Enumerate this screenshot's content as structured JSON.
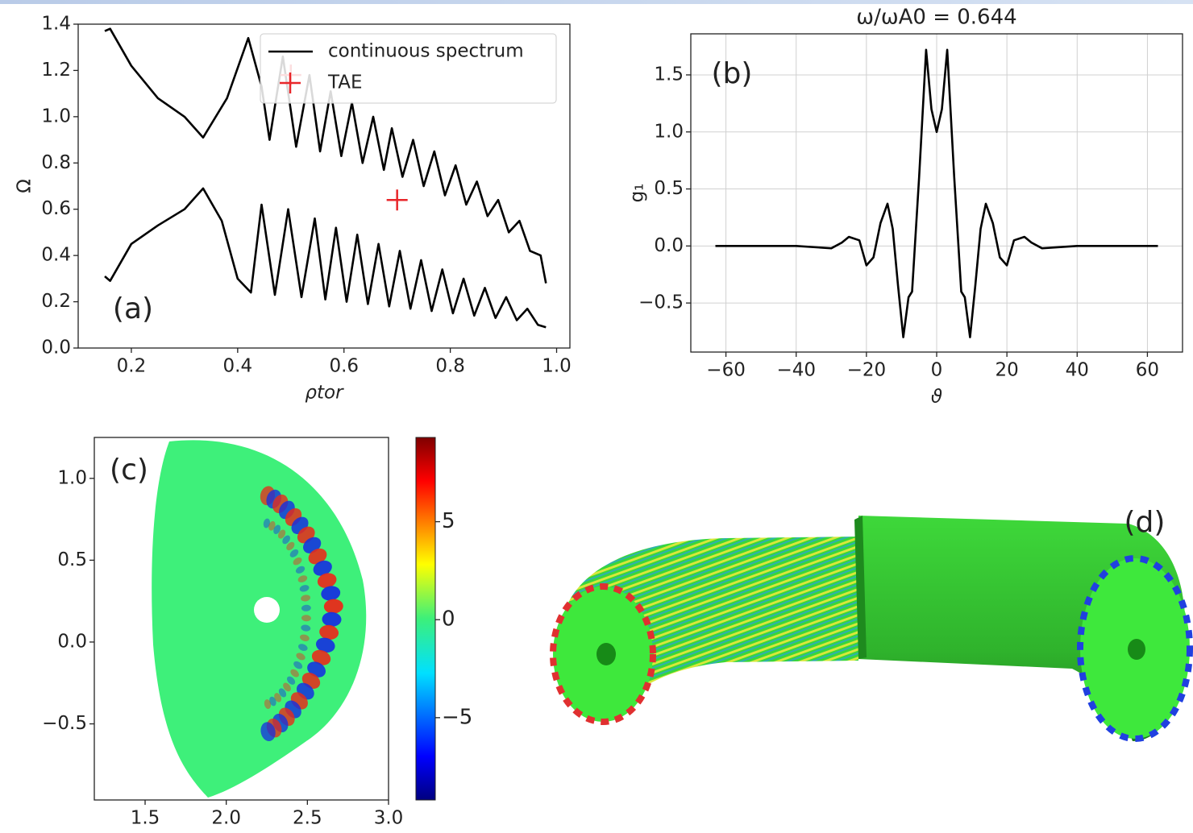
{
  "chart_data": [
    {
      "type": "line",
      "panel_label": "(a)",
      "xlabel": "ρtor",
      "ylabel": "Ω",
      "xlim": [
        0.1,
        1.025
      ],
      "ylim": [
        0,
        1.4
      ],
      "xticks": [
        0.2,
        0.4,
        0.6,
        0.8,
        {
          "value": 1,
          "label": "1.0"
        }
      ],
      "yticks": [
        {
          "value": 0,
          "label": "0.0"
        },
        0.2,
        0.4,
        0.6,
        0.8,
        {
          "value": 1,
          "label": "1.0"
        },
        1.2,
        1.4
      ],
      "grid": false,
      "legend": "upper right",
      "series": [
        {
          "name": "continuous spectrum",
          "color": "#000000",
          "x": [
            0.15,
            0.16,
            0.2,
            0.25,
            0.3,
            0.335,
            0.38,
            0.42,
            0.445,
            0.46,
            0.485,
            0.51,
            0.535,
            0.555,
            0.575,
            0.595,
            0.615,
            0.635,
            0.655,
            0.675,
            0.69,
            0.71,
            0.73,
            0.75,
            0.77,
            0.79,
            0.81,
            0.83,
            0.85,
            0.87,
            0.89,
            0.91,
            0.93,
            0.95,
            0.97,
            0.98,
            null,
            0.15,
            0.16,
            0.2,
            0.25,
            0.3,
            0.335,
            0.37,
            0.4,
            0.425,
            0.445,
            0.47,
            0.495,
            0.52,
            0.545,
            0.565,
            0.585,
            0.605,
            0.625,
            0.645,
            0.665,
            0.685,
            0.705,
            0.725,
            0.745,
            0.765,
            0.785,
            0.805,
            0.825,
            0.845,
            0.865,
            0.885,
            0.905,
            0.925,
            0.945,
            0.965,
            0.98
          ],
          "values": [
            1.37,
            1.38,
            1.22,
            1.08,
            1.0,
            0.91,
            1.08,
            1.34,
            1.13,
            0.9,
            1.26,
            0.87,
            1.18,
            0.85,
            1.11,
            0.83,
            1.06,
            0.8,
            1.0,
            0.77,
            0.95,
            0.74,
            0.9,
            0.7,
            0.85,
            0.66,
            0.79,
            0.62,
            0.72,
            0.57,
            0.64,
            0.5,
            0.55,
            0.42,
            0.4,
            0.28,
            null,
            0.31,
            0.29,
            0.45,
            0.53,
            0.6,
            0.69,
            0.55,
            0.3,
            0.24,
            0.62,
            0.23,
            0.6,
            0.22,
            0.56,
            0.21,
            0.52,
            0.2,
            0.49,
            0.19,
            0.45,
            0.18,
            0.42,
            0.17,
            0.38,
            0.16,
            0.34,
            0.15,
            0.3,
            0.14,
            0.26,
            0.13,
            0.22,
            0.12,
            0.17,
            0.1,
            0.09
          ]
        },
        {
          "name": "TAE",
          "color": "#e8262a",
          "marker": "+",
          "x": [
            0.5,
            0.7
          ],
          "values": [
            1.18,
            0.64
          ]
        }
      ]
    },
    {
      "type": "line",
      "title": "ω/ωA0 = 0.644",
      "panel_label": "(b)",
      "xlabel": "ϑ",
      "ylabel": "g₁",
      "xlim": [
        -70,
        70
      ],
      "ylim": [
        -0.93,
        1.86
      ],
      "xticks": [
        {
          "value": -60,
          "label": "−60"
        },
        {
          "value": -40,
          "label": "−40"
        },
        {
          "value": -20,
          "label": "−20"
        },
        0,
        20,
        40,
        60
      ],
      "yticks": [
        {
          "value": -0.5,
          "label": "−0.5"
        },
        {
          "value": 0,
          "label": "0.0"
        },
        0.5,
        {
          "value": 1,
          "label": "1.0"
        },
        1.5
      ],
      "grid": true,
      "series": [
        {
          "color": "#000000",
          "x": [
            -63,
            -40,
            -30,
            -27,
            -25,
            -22,
            -20,
            -18,
            -16,
            -14,
            -12.5,
            -11,
            -9.5,
            -8,
            -7,
            -5,
            -3,
            -1.5,
            0,
            1.5,
            3,
            5,
            7,
            8,
            9.5,
            11,
            12.5,
            14,
            16,
            18,
            20,
            22,
            25,
            27,
            30,
            40,
            63
          ],
          "values": [
            0,
            0,
            -0.02,
            0.03,
            0.08,
            0.05,
            -0.17,
            -0.1,
            0.2,
            0.37,
            0.15,
            -0.35,
            -0.8,
            -0.45,
            -0.4,
            0.6,
            1.72,
            1.2,
            1.0,
            1.2,
            1.72,
            0.6,
            -0.4,
            -0.45,
            -0.8,
            -0.35,
            0.15,
            0.37,
            0.2,
            -0.1,
            -0.17,
            0.05,
            0.08,
            0.03,
            -0.02,
            0,
            0
          ]
        }
      ]
    },
    {
      "type": "heatmap",
      "panel_label": "(c)",
      "xlim": [
        1.187,
        3.0
      ],
      "ylim": [
        -0.965,
        1.25
      ],
      "xticks": [
        1.5,
        {
          "value": 2,
          "label": "2.0"
        },
        2.5,
        {
          "value": 3,
          "label": "3.0"
        }
      ],
      "yticks": [
        {
          "value": -0.5,
          "label": "−0.5"
        },
        {
          "value": 0,
          "label": "0.0"
        },
        0.5,
        {
          "value": 1,
          "label": "1.0"
        }
      ],
      "grid": false,
      "colorbar": {
        "colormap": "jet",
        "lim": [
          -9.2,
          9.3
        ],
        "ticks": [
          {
            "value": -5,
            "label": "−5"
          },
          0,
          5
        ]
      }
    }
  ],
  "panel_d": {
    "label": "(d)"
  }
}
